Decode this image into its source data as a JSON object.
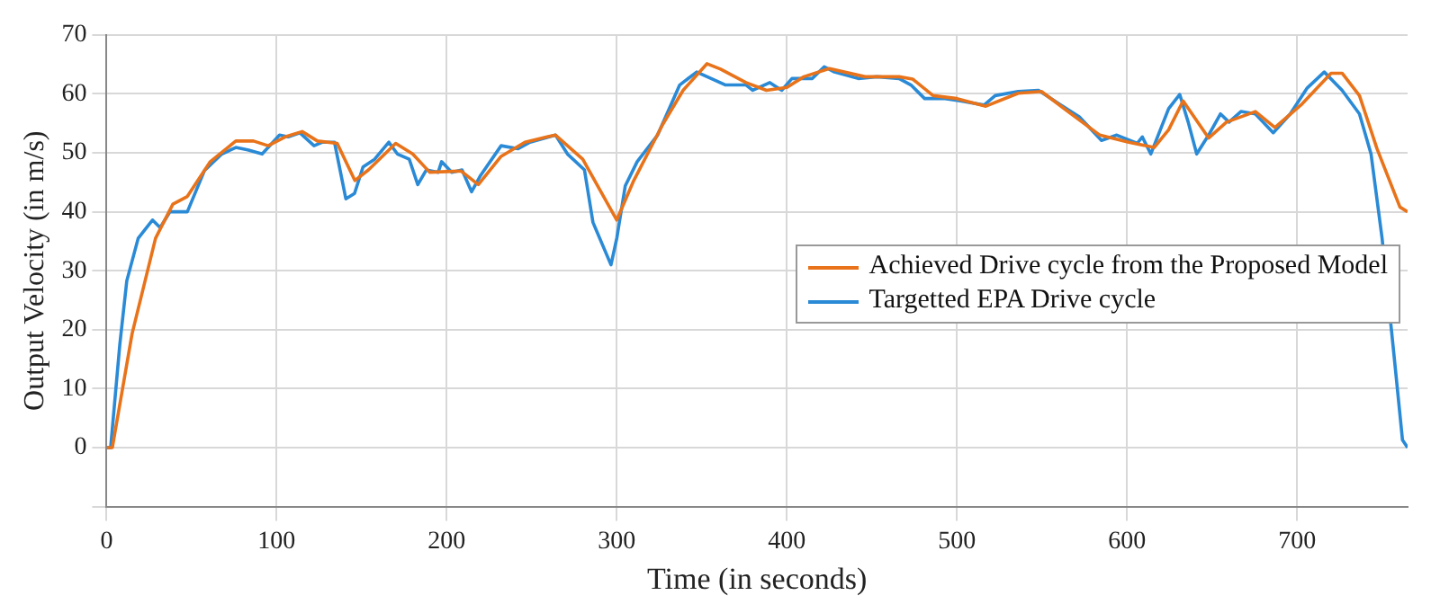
{
  "chart_data": {
    "type": "line",
    "xlabel": "Time (in seconds)",
    "ylabel": "Output Velocity (in m/s)",
    "xlim": [
      0,
      765
    ],
    "xticks": [
      0,
      100,
      200,
      300,
      400,
      500,
      600,
      700
    ],
    "ylim": [
      -10,
      70
    ],
    "yticks": [
      {
        "value": -10,
        "label": null
      },
      0,
      10,
      20,
      30,
      40,
      50,
      60,
      70
    ],
    "grid": true,
    "legend": "right",
    "marker": "none",
    "line_style": "solid",
    "series": [
      {
        "name": "Achieved Drive cycle from the Proposed Model",
        "color": "#e8731a",
        "x": [
          0,
          3.4,
          15,
          28.8,
          39,
          47.5,
          61,
          76,
          86.4,
          95,
          105,
          115,
          124,
          135.6,
          146,
          154,
          170,
          180,
          190,
          208.5,
          218.6,
          232,
          246,
          259,
          264,
          280,
          300,
          310,
          327,
          339,
          353,
          361,
          376,
          388,
          400,
          410,
          425,
          446,
          466,
          474,
          486,
          500,
          517,
          536,
          549.7,
          563,
          584,
          601,
          616,
          624.5,
          633,
          648,
          658.5,
          675.5,
          687,
          703,
          720,
          726.5,
          736.7,
          747,
          760.5,
          765
        ],
        "values": [
          0,
          0,
          19.3,
          35.5,
          41.3,
          42.6,
          48.5,
          52,
          52,
          51.2,
          52.7,
          53.6,
          52,
          51.6,
          45.3,
          47.1,
          51.6,
          49.8,
          46.7,
          46.9,
          44.6,
          49.4,
          51.8,
          52.7,
          53,
          48.9,
          38.6,
          45.3,
          54.8,
          60.6,
          65.1,
          64.2,
          61.9,
          60.6,
          61.1,
          62.9,
          64.3,
          62.9,
          62.9,
          62.5,
          59.7,
          59.2,
          57.9,
          60.1,
          60.4,
          57.5,
          53,
          51.8,
          50.9,
          53.9,
          58.8,
          52.5,
          55.2,
          57,
          54.3,
          58.3,
          63.5,
          63.5,
          59.7,
          50.7,
          40.8,
          40
        ]
      },
      {
        "name": "Targetted EPA Drive cycle",
        "color": "#2a8ad6",
        "x": [
          0,
          2.4,
          7.8,
          11.9,
          18.6,
          27,
          31.5,
          37.3,
          47.5,
          57.6,
          67.8,
          76,
          83,
          91.5,
          101.7,
          106.8,
          113.6,
          122,
          127,
          134,
          140.7,
          145.8,
          150.8,
          157.6,
          166,
          171,
          178,
          183,
          188,
          195,
          197,
          203,
          209,
          214.6,
          220,
          232,
          242,
          249,
          264,
          271,
          281,
          286,
          296.6,
          300,
          305,
          312,
          324,
          337,
          347,
          364,
          376,
          380,
          390,
          397,
          403,
          415,
          422,
          428,
          442,
          453,
          466,
          473,
          481,
          493,
          502,
          516,
          522.5,
          536,
          548,
          560,
          572,
          585,
          594,
          606,
          609,
          614,
          624.5,
          631,
          636,
          641,
          648,
          655,
          660,
          667,
          675.5,
          686,
          696,
          706,
          716,
          726.5,
          736.7,
          743.5,
          750,
          757,
          762,
          765
        ],
        "values": [
          0,
          0,
          17.5,
          28.3,
          35.5,
          38.6,
          37.3,
          40,
          40,
          47,
          49.8,
          50.9,
          50.5,
          49.8,
          53,
          52.7,
          53.4,
          51.2,
          51.8,
          51.8,
          42.2,
          43.1,
          47.6,
          48.9,
          51.8,
          49.8,
          48.9,
          44.6,
          47.1,
          46.7,
          48.5,
          46.7,
          47.1,
          43.4,
          46.2,
          51.2,
          50.7,
          51.8,
          53,
          49.8,
          47.1,
          38.2,
          31,
          35.5,
          44.4,
          48.5,
          53,
          61.5,
          63.7,
          61.5,
          61.5,
          60.6,
          61.9,
          60.6,
          62.6,
          62.6,
          64.6,
          63.7,
          62.6,
          62.9,
          62.6,
          61.5,
          59.2,
          59.2,
          58.8,
          58.1,
          59.7,
          60.4,
          60.6,
          58.3,
          56.1,
          52.1,
          53,
          51.6,
          52.7,
          49.8,
          57.5,
          59.9,
          55.2,
          49.8,
          53,
          56.6,
          55.2,
          57,
          56.6,
          53.4,
          56.6,
          61,
          63.7,
          60.6,
          56.6,
          49.8,
          35.5,
          15.7,
          1.3,
          0
        ]
      }
    ]
  }
}
